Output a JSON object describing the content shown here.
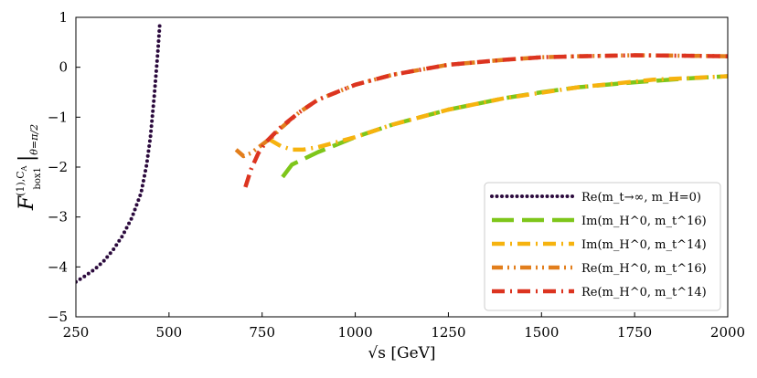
{
  "chart_data": {
    "type": "line",
    "xlabel": "√s  [GeV]",
    "ylabel": "F box1 (1),C_A |θ=π/2",
    "xlim": [
      250,
      2000
    ],
    "ylim": [
      -5,
      1
    ],
    "xticks": [
      250,
      500,
      750,
      1000,
      1250,
      1500,
      1750,
      2000
    ],
    "yticks": [
      -5,
      -4,
      -3,
      -2,
      -1,
      0,
      1
    ],
    "grid": false,
    "legend_position": "lower-right",
    "series": [
      {
        "name": "Re(m_t→∞, m_H=0)",
        "color": "#2b0a3d",
        "style": "dotted",
        "x": [
          250,
          275,
          300,
          325,
          350,
          375,
          400,
          425,
          440,
          450,
          460,
          470,
          475
        ],
        "y": [
          -4.3,
          -4.18,
          -4.05,
          -3.88,
          -3.66,
          -3.38,
          -3.02,
          -2.52,
          -1.95,
          -1.4,
          -0.6,
          0.3,
          0.85
        ]
      },
      {
        "name": "Im(m_H^0, m_t^16)",
        "color": "#7ec61a",
        "style": "long-dash",
        "x": [
          805,
          830,
          900,
          1000,
          1100,
          1250,
          1400,
          1500,
          1600,
          1750,
          1900,
          2000
        ],
        "y": [
          -2.2,
          -1.95,
          -1.7,
          -1.4,
          -1.15,
          -0.85,
          -0.62,
          -0.5,
          -0.4,
          -0.3,
          -0.22,
          -0.18
        ]
      },
      {
        "name": "Im(m_H^0, m_t^14)",
        "color": "#f6b30f",
        "style": "dash-dot",
        "x": [
          770,
          800,
          830,
          860,
          900,
          950,
          1000,
          1100,
          1250,
          1400,
          1600,
          1800,
          2000
        ],
        "y": [
          -1.45,
          -1.58,
          -1.65,
          -1.65,
          -1.6,
          -1.5,
          -1.4,
          -1.15,
          -0.85,
          -0.62,
          -0.4,
          -0.25,
          -0.18
        ]
      },
      {
        "name": "Re(m_H^0, m_t^16)",
        "color": "#e27e1c",
        "style": "dash-dot-dot",
        "x": [
          680,
          700,
          720,
          750,
          780,
          800,
          850,
          900,
          1000,
          1100,
          1250,
          1400,
          1500,
          1600,
          1750,
          1900,
          2000
        ],
        "y": [
          -1.65,
          -1.78,
          -1.72,
          -1.55,
          -1.38,
          -1.22,
          -0.9,
          -0.65,
          -0.35,
          -0.15,
          0.05,
          0.15,
          0.2,
          0.22,
          0.24,
          0.23,
          0.22
        ]
      },
      {
        "name": "Re(m_H^0, m_t^14)",
        "color": "#dc3420",
        "style": "dash-dot",
        "x": [
          705,
          720,
          740,
          760,
          780,
          800,
          850,
          900,
          1000,
          1100,
          1250,
          1400,
          1500,
          1600,
          1750,
          1900,
          2000
        ],
        "y": [
          -2.4,
          -2.05,
          -1.72,
          -1.5,
          -1.35,
          -1.2,
          -0.9,
          -0.65,
          -0.35,
          -0.15,
          0.05,
          0.15,
          0.2,
          0.22,
          0.24,
          0.23,
          0.22
        ]
      }
    ]
  }
}
